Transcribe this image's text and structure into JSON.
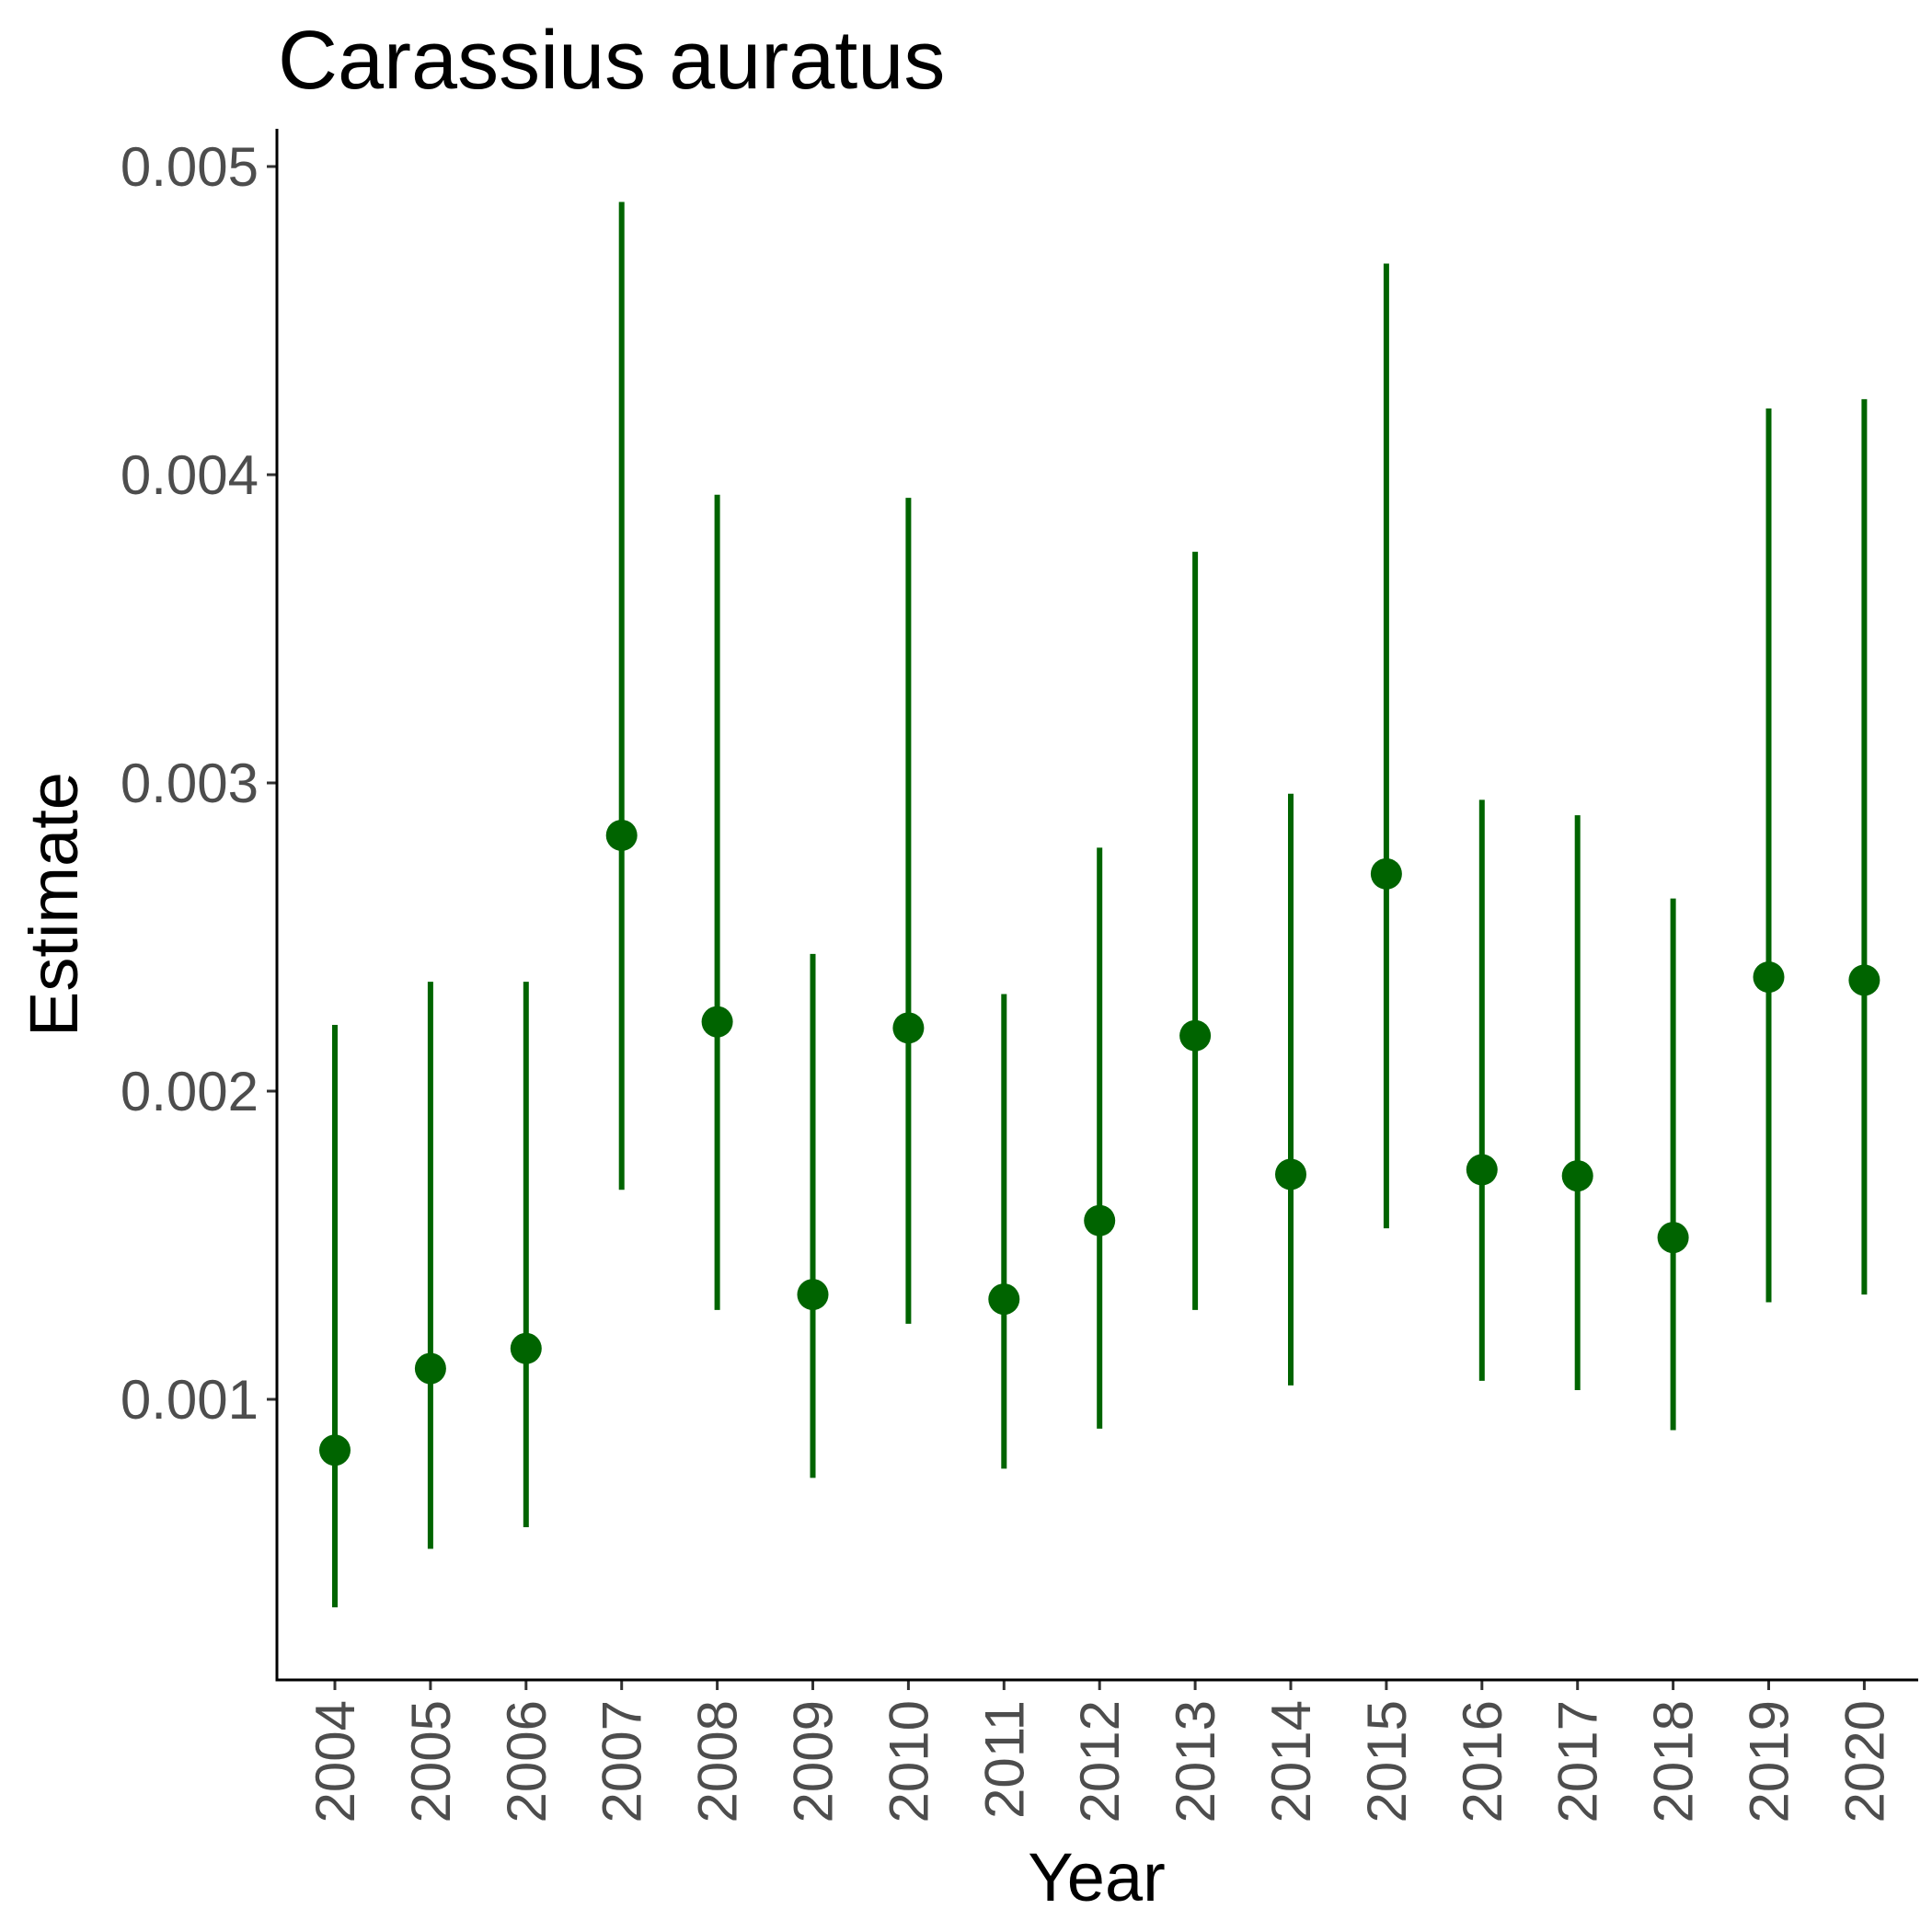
{
  "chart_data": {
    "type": "scatter",
    "title": "Carassius auratus",
    "xlabel": "Year",
    "ylabel": "Estimate",
    "color": "#006400",
    "categories": [
      "2004",
      "2005",
      "2006",
      "2007",
      "2008",
      "2009",
      "2010",
      "2011",
      "2012",
      "2013",
      "2014",
      "2015",
      "2016",
      "2017",
      "2018",
      "2019",
      "2020"
    ],
    "series": [
      {
        "name": "Estimate",
        "values": [
          0.000835,
          0.0011,
          0.001165,
          0.00283,
          0.002225,
          0.00134,
          0.002205,
          0.001325,
          0.00158,
          0.00218,
          0.00173,
          0.002705,
          0.001745,
          0.001725,
          0.001525,
          0.00237,
          0.00236
        ],
        "lower": [
          0.000325,
          0.000515,
          0.000585,
          0.00168,
          0.00129,
          0.000745,
          0.001245,
          0.000775,
          0.000905,
          0.00129,
          0.001045,
          0.001555,
          0.00106,
          0.00103,
          0.0009,
          0.001315,
          0.00134
        ],
        "upper": [
          0.002215,
          0.002355,
          0.002355,
          0.004885,
          0.003935,
          0.002445,
          0.003925,
          0.002315,
          0.00279,
          0.00375,
          0.002965,
          0.004685,
          0.002945,
          0.002895,
          0.002625,
          0.004215,
          0.004245
        ]
      }
    ],
    "yticks": [
      "0.001",
      "0.002",
      "0.003",
      "0.004",
      "0.005"
    ],
    "ylim": [
      0.00024,
      0.00512
    ],
    "grid": false,
    "legend": "none"
  }
}
